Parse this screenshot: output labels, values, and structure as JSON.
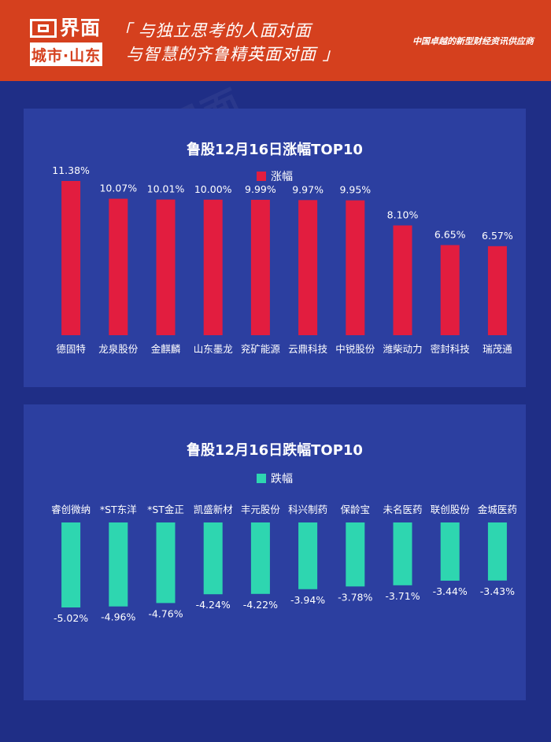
{
  "header": {
    "logo_name": "界面",
    "logo_sub": "城市·山东",
    "slogan_line1": "「 与独立思考的人面对面",
    "slogan_line2": "与智慧的齐鲁精英面对面 」",
    "tagline": "中国卓越的新型财经资讯供应商"
  },
  "watermark_text": "界面",
  "colors": {
    "header_bg": "#d5401e",
    "page_bg": "#1f2e86",
    "panel_bg": "#2c3fa0",
    "gain_bar": "#e21d3f",
    "loss_bar": "#2ed6b0"
  },
  "chart_data": [
    {
      "type": "bar",
      "title": "鲁股12月16日涨幅TOP10",
      "legend": "涨幅",
      "categories": [
        "德固特",
        "龙泉股份",
        "金麒麟",
        "山东墨龙",
        "兖矿能源",
        "云鼎科技",
        "中锐股份",
        "潍柴动力",
        "密封科技",
        "瑞茂通"
      ],
      "values": [
        11.38,
        10.07,
        10.01,
        10.0,
        9.99,
        9.97,
        9.95,
        8.1,
        6.65,
        6.57
      ],
      "labels": [
        "11.38%",
        "10.07%",
        "10.01%",
        "10.00%",
        "9.99%",
        "9.97%",
        "9.95%",
        "8.10%",
        "6.65%",
        "6.57%"
      ],
      "ylim": [
        0,
        11.38
      ]
    },
    {
      "type": "bar",
      "title": "鲁股12月16日跌幅TOP10",
      "legend": "跌幅",
      "categories": [
        "睿创微纳",
        "*ST东洋",
        "*ST金正",
        "凯盛新材",
        "丰元股份",
        "科兴制药",
        "保龄宝",
        "未名医药",
        "联创股份",
        "金城医药"
      ],
      "values": [
        -5.02,
        -4.96,
        -4.76,
        -4.24,
        -4.22,
        -3.94,
        -3.78,
        -3.71,
        -3.44,
        -3.43
      ],
      "labels": [
        "-5.02%",
        "-4.96%",
        "-4.76%",
        "-4.24%",
        "-4.22%",
        "-3.94%",
        "-3.78%",
        "-3.71%",
        "-3.44%",
        "-3.43%"
      ],
      "ylim": [
        -5.02,
        0
      ]
    }
  ]
}
